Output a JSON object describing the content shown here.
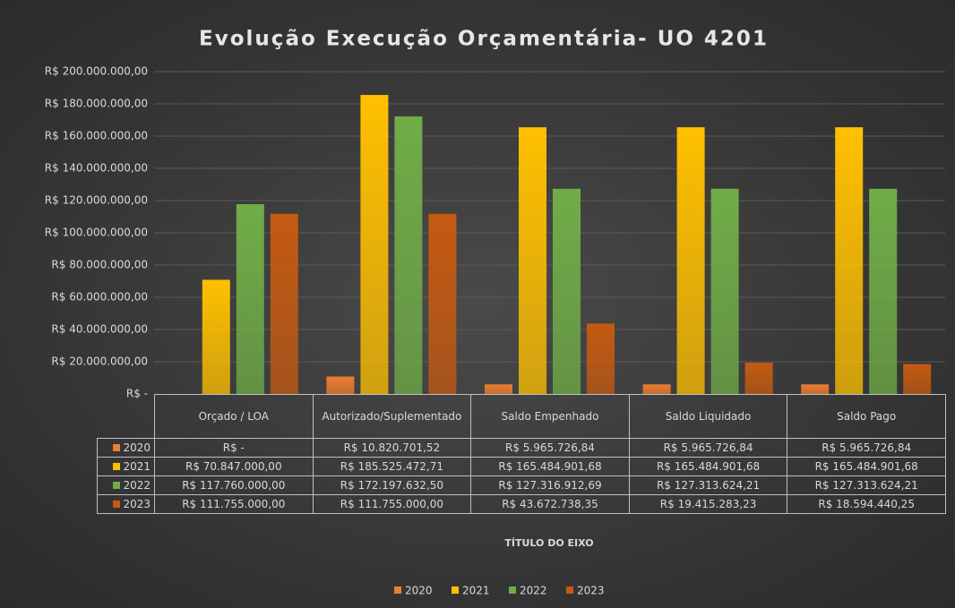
{
  "chart_data": {
    "type": "bar",
    "title": "Evolução Execução Orçamentária- UO 4201",
    "x_label": "TÍTULO DO EIXO",
    "categories": [
      "Orçado / LOA",
      "Autorizado/Suplementado",
      "Saldo Empenhado",
      "Saldo Liquidado",
      "Saldo Pago"
    ],
    "series": [
      {
        "name": "2020",
        "color": "#ed7d31",
        "values": [
          0,
          10820701.52,
          5965726.84,
          5965726.84,
          5965726.84
        ],
        "value_labels": [
          "R$ -",
          "R$ 10.820.701,52",
          "R$ 5.965.726,84",
          "R$ 5.965.726,84",
          "R$ 5.965.726,84"
        ]
      },
      {
        "name": "2021",
        "color": "#ffc000",
        "values": [
          70847000.0,
          185525472.71,
          165484901.68,
          165484901.68,
          165484901.68
        ],
        "value_labels": [
          "R$ 70.847.000,00",
          "R$ 185.525.472,71",
          "R$ 165.484.901,68",
          "R$ 165.484.901,68",
          "R$ 165.484.901,68"
        ]
      },
      {
        "name": "2022",
        "color": "#70ad47",
        "values": [
          117760000.0,
          172197632.5,
          127316912.69,
          127313624.21,
          127313624.21
        ],
        "value_labels": [
          "R$ 117.760.000,00",
          "R$ 172.197.632,50",
          "R$ 127.316.912,69",
          "R$ 127.313.624,21",
          "R$ 127.313.624,21"
        ]
      },
      {
        "name": "2023",
        "color": "#c55a11",
        "values": [
          111755000.0,
          111755000.0,
          43672738.35,
          19415283.23,
          18594440.25
        ],
        "value_labels": [
          "R$ 111.755.000,00",
          "R$ 111.755.000,00",
          "R$ 43.672.738,35",
          "R$ 19.415.283,23",
          "R$ 18.594.440,25"
        ]
      }
    ],
    "ylim": [
      0,
      200000000
    ],
    "yticks": [
      {
        "value": 0,
        "label": "R$ -"
      },
      {
        "value": 20000000,
        "label": "R$ 20.000.000,00"
      },
      {
        "value": 40000000,
        "label": "R$ 40.000.000,00"
      },
      {
        "value": 60000000,
        "label": "R$ 60.000.000,00"
      },
      {
        "value": 80000000,
        "label": "R$ 80.000.000,00"
      },
      {
        "value": 100000000,
        "label": "R$ 100.000.000,00"
      },
      {
        "value": 120000000,
        "label": "R$ 120.000.000,00"
      },
      {
        "value": 140000000,
        "label": "R$ 140.000.000,00"
      },
      {
        "value": 160000000,
        "label": "R$ 160.000.000,00"
      },
      {
        "value": 180000000,
        "label": "R$ 180.000.000,00"
      },
      {
        "value": 200000000,
        "label": "R$ 200.000.000,00"
      }
    ],
    "grid": true,
    "legend": "bottom"
  }
}
